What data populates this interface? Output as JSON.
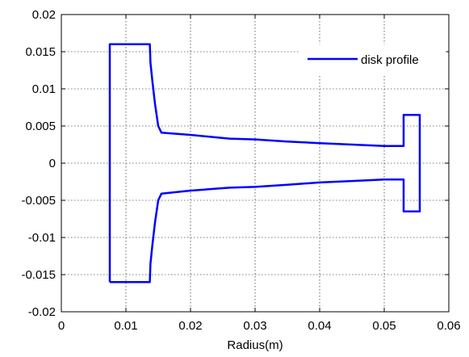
{
  "chart_data": {
    "type": "line",
    "title": "",
    "xlabel": "Radius(m)",
    "ylabel": "",
    "xlim": [
      0,
      0.06
    ],
    "ylim": [
      -0.02,
      0.02
    ],
    "xticks": [
      "0",
      "0.01",
      "0.02",
      "0.03",
      "0.04",
      "0.05",
      "0.06"
    ],
    "yticks": [
      "0.02",
      "0.015",
      "0.01",
      "0.005",
      "0",
      "-0.005",
      "-0.01",
      "-0.015",
      "-0.02"
    ],
    "grid": true,
    "legend_position": "top-right",
    "series": [
      {
        "name": "disk profile",
        "color": "#0000ff",
        "points": [
          [
            0.0075,
            -0.016
          ],
          [
            0.0075,
            0.016
          ],
          [
            0.0137,
            0.016
          ],
          [
            0.0138,
            0.0135
          ],
          [
            0.0141,
            0.011
          ],
          [
            0.0145,
            0.008
          ],
          [
            0.015,
            0.005
          ],
          [
            0.0155,
            0.0041
          ],
          [
            0.02,
            0.0038
          ],
          [
            0.026,
            0.0033
          ],
          [
            0.03,
            0.0032
          ],
          [
            0.035,
            0.0029
          ],
          [
            0.04,
            0.0027
          ],
          [
            0.045,
            0.0025
          ],
          [
            0.05,
            0.0023
          ],
          [
            0.053,
            0.0023
          ],
          [
            0.053,
            0.0065
          ],
          [
            0.0555,
            0.0065
          ],
          [
            0.0555,
            -0.0065
          ],
          [
            0.053,
            -0.0065
          ],
          [
            0.053,
            -0.0022
          ],
          [
            0.05,
            -0.0022
          ],
          [
            0.045,
            -0.0024
          ],
          [
            0.04,
            -0.0026
          ],
          [
            0.035,
            -0.0029
          ],
          [
            0.03,
            -0.0032
          ],
          [
            0.026,
            -0.0033
          ],
          [
            0.02,
            -0.0037
          ],
          [
            0.0155,
            -0.0041
          ],
          [
            0.015,
            -0.005
          ],
          [
            0.0145,
            -0.008
          ],
          [
            0.0141,
            -0.011
          ],
          [
            0.0138,
            -0.0135
          ],
          [
            0.0137,
            -0.016
          ],
          [
            0.0075,
            -0.016
          ]
        ]
      }
    ]
  }
}
